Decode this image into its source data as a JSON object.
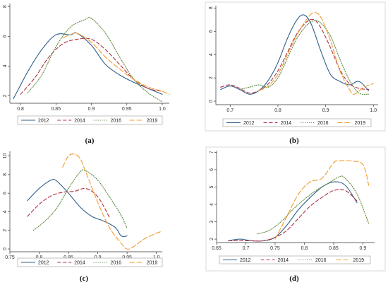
{
  "figure": {
    "panel_labels": [
      "(a)",
      "(b)",
      "(c)",
      "(d)"
    ]
  },
  "series_style": {
    "2012": {
      "color": "#2f5f8a",
      "dash": ""
    },
    "2014": {
      "color": "#b03045",
      "dash": "5,3"
    },
    "2016": {
      "color": "#5f8a3e",
      "dash": "1.2,1.8"
    },
    "2019": {
      "color": "#f39a2e",
      "dash": "7,3"
    }
  },
  "chart_data": [
    {
      "type": "line",
      "panel": "(a)",
      "xlim": [
        0.785,
        1.01
      ],
      "ylim": [
        1.5,
        8.2
      ],
      "xticks": [
        0.8,
        0.85,
        0.9,
        0.95,
        1.0
      ],
      "xtick_labels": [
        "0.8",
        "0.85",
        "0.9",
        "0.95",
        "1.0"
      ],
      "yticks": [
        2,
        4,
        6,
        8
      ],
      "ytick_labels": [
        "2",
        "4",
        "6",
        "8"
      ],
      "legend": [
        "2012",
        "2014",
        "2016",
        "2019"
      ],
      "series": [
        {
          "name": "2012",
          "x": [
            0.79,
            0.81,
            0.83,
            0.85,
            0.87,
            0.88,
            0.9,
            0.92,
            0.94,
            0.96,
            0.98,
            1.0
          ],
          "y": [
            1.8,
            3.6,
            5.1,
            6.1,
            6.1,
            6.2,
            5.4,
            4.1,
            3.4,
            2.9,
            2.5,
            2.1
          ]
        },
        {
          "name": "2014",
          "x": [
            0.8,
            0.82,
            0.84,
            0.86,
            0.88,
            0.9,
            0.92,
            0.94,
            0.96,
            0.98,
            1.0
          ],
          "y": [
            2.1,
            3.2,
            4.6,
            5.5,
            5.8,
            5.8,
            5.1,
            4.1,
            3.1,
            2.5,
            2.3
          ]
        },
        {
          "name": "2016",
          "x": [
            0.81,
            0.83,
            0.85,
            0.87,
            0.89,
            0.9,
            0.92,
            0.94,
            0.96,
            0.98,
            1.0
          ],
          "y": [
            2.2,
            3.4,
            5.3,
            6.6,
            7.1,
            7.2,
            6.2,
            4.6,
            3.1,
            2.2,
            1.6
          ]
        },
        {
          "name": "2019",
          "x": [
            0.86,
            0.87,
            0.88,
            0.9,
            0.92,
            0.94,
            0.96,
            0.98,
            1.0,
            1.01
          ],
          "y": [
            5.9,
            6.1,
            6.2,
            5.6,
            4.6,
            3.8,
            3.1,
            2.6,
            2.3,
            2.1
          ]
        }
      ]
    },
    {
      "type": "line",
      "panel": "(b)",
      "xlim": [
        0.67,
        1.01
      ],
      "ylim": [
        -0.3,
        8.2
      ],
      "xticks": [
        0.7,
        0.8,
        0.9,
        1.0
      ],
      "xtick_labels": [
        "0.7",
        "0.8",
        "0.9",
        "1.0"
      ],
      "yticks": [
        0,
        2,
        4,
        6,
        8
      ],
      "ytick_labels": [
        "0",
        "2",
        "4",
        "6",
        "8"
      ],
      "legend": [
        "2012",
        "2014",
        "2016",
        "2019"
      ],
      "series": [
        {
          "name": "2012",
          "x": [
            0.68,
            0.7,
            0.72,
            0.74,
            0.76,
            0.78,
            0.8,
            0.82,
            0.84,
            0.855,
            0.87,
            0.89,
            0.91,
            0.93,
            0.95,
            0.97,
            0.99
          ],
          "y": [
            1.0,
            1.3,
            1.0,
            0.6,
            0.9,
            1.8,
            3.3,
            5.4,
            7.0,
            7.4,
            6.6,
            4.3,
            2.3,
            1.7,
            1.4,
            1.7,
            0.9
          ]
        },
        {
          "name": "2014",
          "x": [
            0.68,
            0.7,
            0.72,
            0.74,
            0.76,
            0.78,
            0.8,
            0.82,
            0.84,
            0.86,
            0.875,
            0.89,
            0.91,
            0.93,
            0.95,
            0.97,
            0.99
          ],
          "y": [
            1.2,
            1.4,
            1.1,
            0.7,
            0.9,
            1.5,
            2.6,
            4.2,
            5.8,
            6.8,
            7.0,
            6.3,
            4.6,
            2.7,
            1.5,
            1.1,
            1.0
          ]
        },
        {
          "name": "2016",
          "x": [
            0.72,
            0.74,
            0.76,
            0.78,
            0.8,
            0.82,
            0.84,
            0.86,
            0.875,
            0.89,
            0.91,
            0.93,
            0.95,
            0.97,
            0.99
          ],
          "y": [
            1.0,
            1.2,
            1.4,
            1.2,
            2.0,
            3.7,
            5.4,
            6.5,
            6.9,
            6.7,
            5.6,
            3.6,
            1.8,
            0.7,
            0.6
          ]
        },
        {
          "name": "2019",
          "x": [
            0.76,
            0.78,
            0.8,
            0.82,
            0.84,
            0.86,
            0.875,
            0.89,
            0.91,
            0.93,
            0.95,
            0.96,
            0.98,
            1.0
          ],
          "y": [
            0.9,
            1.3,
            2.3,
            4.0,
            5.7,
            7.0,
            7.6,
            7.2,
            5.2,
            2.6,
            1.0,
            0.6,
            1.2,
            1.5
          ]
        }
      ]
    },
    {
      "type": "line",
      "panel": "(c)",
      "xlim": [
        0.75,
        1.01
      ],
      "ylim": [
        -0.3,
        10.5
      ],
      "xticks": [
        0.75,
        0.8,
        0.85,
        0.9,
        0.95,
        1.0
      ],
      "xtick_labels": [
        "0.75",
        "0.8",
        "0.85",
        "0.9",
        "0.95",
        "1.0"
      ],
      "yticks": [
        0,
        2,
        4,
        6,
        8,
        10
      ],
      "ytick_labels": [
        "0",
        "2",
        "4",
        "6",
        "8",
        "10"
      ],
      "legend": [
        "2012",
        "2014",
        "2016",
        "2019"
      ],
      "series": [
        {
          "name": "2012",
          "x": [
            0.78,
            0.8,
            0.82,
            0.83,
            0.85,
            0.87,
            0.89,
            0.91,
            0.93,
            0.94,
            0.95
          ],
          "y": [
            5.2,
            6.5,
            7.4,
            7.3,
            6.0,
            4.5,
            3.5,
            3.0,
            2.3,
            1.4,
            1.4
          ]
        },
        {
          "name": "2014",
          "x": [
            0.78,
            0.8,
            0.82,
            0.84,
            0.86,
            0.88,
            0.9,
            0.92
          ],
          "y": [
            3.5,
            4.8,
            5.7,
            6.1,
            6.2,
            6.5,
            5.6,
            3.4
          ]
        },
        {
          "name": "2016",
          "x": [
            0.79,
            0.81,
            0.83,
            0.85,
            0.87,
            0.88,
            0.9,
            0.92,
            0.94,
            0.95
          ],
          "y": [
            2.0,
            3.0,
            4.4,
            6.5,
            8.3,
            8.4,
            7.4,
            5.6,
            3.6,
            2.2
          ]
        },
        {
          "name": "2019",
          "x": [
            0.84,
            0.85,
            0.86,
            0.87,
            0.88,
            0.9,
            0.92,
            0.94,
            0.95,
            0.96,
            0.98,
            1.0,
            1.01
          ],
          "y": [
            8.8,
            10.0,
            10.2,
            9.7,
            8.2,
            5.0,
            2.3,
            0.6,
            0.0,
            0.2,
            1.1,
            1.7,
            1.9
          ]
        }
      ]
    },
    {
      "type": "line",
      "panel": "(d)",
      "xlim": [
        0.65,
        0.92
      ],
      "ylim": [
        1.8,
        7.1
      ],
      "xticks": [
        0.65,
        0.7,
        0.75,
        0.8,
        0.85,
        0.9
      ],
      "xtick_labels": [
        "0.65",
        "0.7",
        "0.75",
        "0.8",
        "0.85",
        "0.9"
      ],
      "yticks": [
        2,
        3,
        4,
        5,
        6,
        7
      ],
      "ytick_labels": [
        "2",
        "3",
        "4",
        "5",
        "6",
        "7"
      ],
      "legend": [
        "2012",
        "2014",
        "2016",
        "2019"
      ],
      "series": [
        {
          "name": "2012",
          "x": [
            0.67,
            0.69,
            0.71,
            0.73,
            0.75,
            0.77,
            0.79,
            0.81,
            0.83,
            0.85,
            0.87,
            0.89
          ],
          "y": [
            1.9,
            2.0,
            1.9,
            1.9,
            2.1,
            2.8,
            3.7,
            4.4,
            5.0,
            5.3,
            5.1,
            4.1
          ]
        },
        {
          "name": "2014",
          "x": [
            0.67,
            0.69,
            0.71,
            0.73,
            0.75,
            0.77,
            0.79,
            0.81,
            0.83,
            0.85,
            0.87,
            0.89
          ],
          "y": [
            1.9,
            1.9,
            1.9,
            1.9,
            2.1,
            2.5,
            3.2,
            3.9,
            4.4,
            4.8,
            4.8,
            4.2
          ]
        },
        {
          "name": "2016",
          "x": [
            0.72,
            0.74,
            0.76,
            0.78,
            0.8,
            0.82,
            0.84,
            0.86,
            0.87,
            0.89,
            0.91
          ],
          "y": [
            2.3,
            2.5,
            3.0,
            3.7,
            4.3,
            4.8,
            5.2,
            5.6,
            5.5,
            4.6,
            2.9
          ]
        },
        {
          "name": "2019",
          "x": [
            0.75,
            0.77,
            0.79,
            0.81,
            0.83,
            0.85,
            0.86,
            0.88,
            0.9,
            0.91
          ],
          "y": [
            2.0,
            3.3,
            4.6,
            5.3,
            5.5,
            6.4,
            6.5,
            6.5,
            6.3,
            5.1
          ]
        }
      ]
    }
  ]
}
